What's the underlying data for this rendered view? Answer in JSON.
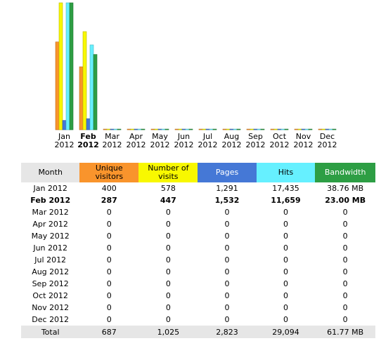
{
  "header": {
    "month": "Month",
    "unique_visitors": "Unique visitors",
    "visits": "Number of visits",
    "pages": "Pages",
    "hits": "Hits",
    "bandwidth": "Bandwidth"
  },
  "colors": {
    "unique_visitors": "#f9942c",
    "visits": "#f8f800",
    "pages": "#4578d6",
    "hits": "#66f0ff",
    "bandwidth": "#2d9e44"
  },
  "rows": [
    {
      "label": "Jan 2012",
      "unique": "400",
      "visits": "578",
      "pages": "1,291",
      "hits": "17,435",
      "bandwidth": "38.76 MB"
    },
    {
      "label": "Feb 2012",
      "unique": "287",
      "visits": "447",
      "pages": "1,532",
      "hits": "11,659",
      "bandwidth": "23.00 MB"
    },
    {
      "label": "Mar 2012",
      "unique": "0",
      "visits": "0",
      "pages": "0",
      "hits": "0",
      "bandwidth": "0"
    },
    {
      "label": "Apr 2012",
      "unique": "0",
      "visits": "0",
      "pages": "0",
      "hits": "0",
      "bandwidth": "0"
    },
    {
      "label": "May 2012",
      "unique": "0",
      "visits": "0",
      "pages": "0",
      "hits": "0",
      "bandwidth": "0"
    },
    {
      "label": "Jun 2012",
      "unique": "0",
      "visits": "0",
      "pages": "0",
      "hits": "0",
      "bandwidth": "0"
    },
    {
      "label": "Jul 2012",
      "unique": "0",
      "visits": "0",
      "pages": "0",
      "hits": "0",
      "bandwidth": "0"
    },
    {
      "label": "Aug 2012",
      "unique": "0",
      "visits": "0",
      "pages": "0",
      "hits": "0",
      "bandwidth": "0"
    },
    {
      "label": "Sep 2012",
      "unique": "0",
      "visits": "0",
      "pages": "0",
      "hits": "0",
      "bandwidth": "0"
    },
    {
      "label": "Oct 2012",
      "unique": "0",
      "visits": "0",
      "pages": "0",
      "hits": "0",
      "bandwidth": "0"
    },
    {
      "label": "Nov 2012",
      "unique": "0",
      "visits": "0",
      "pages": "0",
      "hits": "0",
      "bandwidth": "0"
    },
    {
      "label": "Dec 2012",
      "unique": "0",
      "visits": "0",
      "pages": "0",
      "hits": "0",
      "bandwidth": "0"
    }
  ],
  "total": {
    "label": "Total",
    "unique": "687",
    "visits": "1,025",
    "pages": "2,823",
    "hits": "29,094",
    "bandwidth": "61.77 MB"
  },
  "chart_data": {
    "type": "bar",
    "categories": [
      "Jan 2012",
      "Feb 2012",
      "Mar 2012",
      "Apr 2012",
      "May 2012",
      "Jun 2012",
      "Jul 2012",
      "Aug 2012",
      "Sep 2012",
      "Oct 2012",
      "Nov 2012",
      "Dec 2012"
    ],
    "highlight_category": "Feb 2012",
    "series": [
      {
        "values": [
          400,
          287,
          0,
          0,
          0,
          0,
          0,
          0,
          0,
          0,
          0,
          0
        ]
      },
      {
        "values": [
          578,
          447,
          0,
          0,
          0,
          0,
          0,
          0,
          0,
          0,
          0,
          0
        ]
      },
      {
        "values": [
          1291,
          1532,
          0,
          0,
          0,
          0,
          0,
          0,
          0,
          0,
          0,
          0
        ]
      },
      {
        "values": [
          17435,
          11659,
          0,
          0,
          0,
          0,
          0,
          0,
          0,
          0,
          0,
          0
        ]
      },
      {
        "values": [
          38.76,
          23.0,
          0,
          0,
          0,
          0,
          0,
          0,
          0,
          0,
          0,
          0
        ]
      }
    ]
  }
}
